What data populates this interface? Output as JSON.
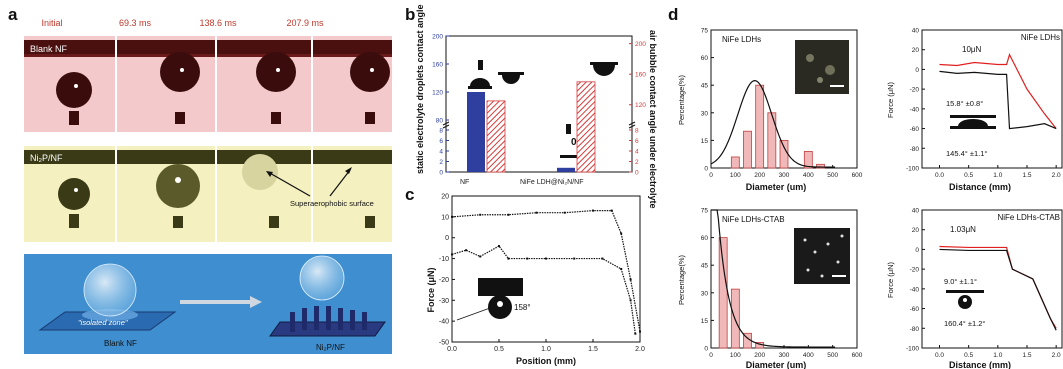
{
  "panel_labels": {
    "a": "a",
    "b": "b",
    "c": "c",
    "d": "d"
  },
  "panel_a": {
    "times": [
      "Initial",
      "69.3 ms",
      "138.6 ms",
      "207.9 ms"
    ],
    "row1_label": "Blank NF",
    "row2_label": "Ni₂P/NF",
    "superaerophobic_label": "Superaerophobic surface",
    "isolated_zone": "\"isolated zone\"",
    "left_caption": "Blank NF",
    "right_caption": "Ni₂P/NF",
    "colors": {
      "row1_bg": "#f3c9cb",
      "row2_bg": "#f4f0c0",
      "row3_bg": "#3f8fd0",
      "time_text": "#c0392b"
    }
  },
  "chart_data": [
    {
      "id": "b",
      "type": "bar",
      "categories": [
        "NF",
        "NiFe LDH@Ni₂N/NF"
      ],
      "series": [
        {
          "values": [
            120,
            0
          ],
          "axis": "left",
          "color": "#2f3fa0"
        },
        {
          "values": [
            125,
            150
          ],
          "axis": "right",
          "color": "#d63a3a",
          "pattern": "hatch"
        }
      ],
      "ylabel_left": "static electrolyte droplets contact angle",
      "ylabel_right": "air bubble contact angle under electrolyte",
      "ylim": [
        0,
        220
      ],
      "left_ticks": [
        "0",
        "2",
        "4",
        "6",
        "8",
        "80",
        "120",
        "160",
        "200"
      ],
      "right_ticks": [
        "0",
        "2",
        "4",
        "6",
        "8",
        "120",
        "160",
        "200"
      ],
      "annotation": "0°"
    },
    {
      "id": "c",
      "type": "line",
      "xlabel": "Position (mm)",
      "ylabel": "Force (μN)",
      "xlim": [
        0,
        2.0
      ],
      "ylim": [
        -50,
        20
      ],
      "x_ticks": [
        "0.0",
        "0.5",
        "1.0",
        "1.5",
        "2.0"
      ],
      "y_ticks": [
        "-50",
        "-40",
        "-30",
        "-20",
        "-10",
        "0",
        "10",
        "20"
      ],
      "series": [
        {
          "x": [
            0,
            0.3,
            0.6,
            0.9,
            1.2,
            1.5,
            1.7,
            1.8,
            1.9,
            2.0
          ],
          "y": [
            10,
            11,
            11,
            12,
            12,
            13,
            13,
            2,
            -20,
            -45
          ]
        },
        {
          "x": [
            0,
            0.15,
            0.3,
            0.5,
            0.6,
            0.8,
            1.0,
            1.3,
            1.6,
            1.8,
            1.9,
            1.95
          ],
          "y": [
            -8,
            -6,
            -9,
            -4,
            -10,
            -10,
            -10,
            -10,
            -10,
            -15,
            -30,
            -46
          ]
        }
      ],
      "annotation": "158°"
    },
    {
      "id": "d-hist-1",
      "type": "bar",
      "title": "NiFe LDHs",
      "xlabel": "Diameter (um)",
      "ylabel": "Percentage(%)",
      "xlim": [
        0,
        600
      ],
      "ylim": [
        0,
        75
      ],
      "x_ticks": [
        "0",
        "100",
        "200",
        "300",
        "400",
        "500",
        "600"
      ],
      "y_ticks": [
        "0",
        "15",
        "30",
        "45",
        "60",
        "75"
      ],
      "x": [
        100,
        150,
        200,
        250,
        300,
        400,
        450
      ],
      "values": [
        6,
        20,
        45,
        30,
        15,
        9,
        2
      ],
      "fit": {
        "peak_x": 180,
        "peak_y": 47,
        "sigma": 70
      }
    },
    {
      "id": "d-force-1",
      "type": "line",
      "title": "NiFe LDHs",
      "xlabel": "Distance (mm)",
      "ylabel": "Force (μN)",
      "xlim": [
        -0.3,
        2.1
      ],
      "ylim": [
        -100,
        40
      ],
      "x_ticks": [
        "0.0",
        "0.5",
        "1.0",
        "1.5",
        "2.0"
      ],
      "y_ticks": [
        "-100",
        "-80",
        "-60",
        "-40",
        "-20",
        "0",
        "20",
        "40"
      ],
      "series": [
        {
          "color": "#e02020",
          "x": [
            0,
            0.3,
            0.6,
            1.0,
            1.15,
            1.2,
            1.5,
            1.8,
            2.0
          ],
          "y": [
            5,
            4,
            7,
            5,
            5,
            15,
            -20,
            -45,
            -60
          ]
        },
        {
          "color": "#111111",
          "x": [
            0,
            0.3,
            0.6,
            1.0,
            1.15,
            1.2,
            1.5,
            1.8,
            2.0
          ],
          "y": [
            -2,
            -4,
            -3,
            -5,
            -5,
            -60,
            -58,
            -55,
            -60
          ]
        }
      ],
      "force_label": "10μN",
      "angle1": "15.8° ±0.8°",
      "angle2": "145.4° ±1.1°"
    },
    {
      "id": "d-hist-2",
      "type": "bar",
      "title": "NiFe LDHs-CTAB",
      "xlabel": "Diameter (um)",
      "ylabel": "Percentage(%)",
      "xlim": [
        0,
        600
      ],
      "ylim": [
        0,
        75
      ],
      "x_ticks": [
        "0",
        "100",
        "200",
        "300",
        "400",
        "500",
        "600"
      ],
      "y_ticks": [
        "0",
        "15",
        "30",
        "45",
        "60",
        "75"
      ],
      "x": [
        50,
        100,
        150,
        200
      ],
      "values": [
        60,
        32,
        8,
        3
      ],
      "fit": {
        "decay_start": 30,
        "tau": 45
      }
    },
    {
      "id": "d-force-2",
      "type": "line",
      "title": "NiFe LDHs-CTAB",
      "xlabel": "Distance (mm)",
      "ylabel": "Force (μN)",
      "xlim": [
        -0.3,
        2.1
      ],
      "ylim": [
        -100,
        40
      ],
      "x_ticks": [
        "0.0",
        "0.5",
        "1.0",
        "1.5",
        "2.0"
      ],
      "y_ticks": [
        "-100",
        "-80",
        "-60",
        "-40",
        "-20",
        "0",
        "20",
        "40"
      ],
      "series": [
        {
          "color": "#e02020",
          "x": [
            0,
            0.5,
            1.0,
            1.15,
            1.25,
            1.6,
            1.9,
            2.0
          ],
          "y": [
            3,
            2,
            2,
            2,
            -20,
            -30,
            -70,
            -80
          ]
        },
        {
          "color": "#111111",
          "x": [
            0,
            0.5,
            1.0,
            1.15,
            1.25,
            1.6,
            1.9,
            2.0
          ],
          "y": [
            0,
            -1,
            -1,
            -1,
            -20,
            -30,
            -70,
            -82
          ]
        }
      ],
      "force_label": "1.03μN",
      "angle1": "9.0° ±1.1°",
      "angle2": "160.4° ±1.2°"
    }
  ]
}
